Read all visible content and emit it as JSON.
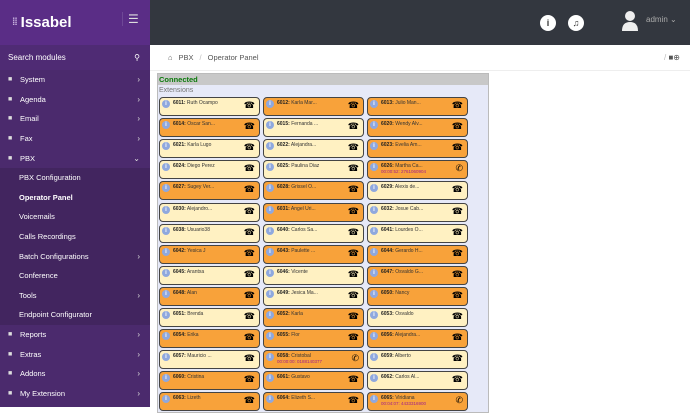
{
  "app": {
    "logo": "Issabel",
    "menu_icon": "hamburger-icon"
  },
  "sidebar": {
    "search_label": "Search modules",
    "items": [
      {
        "label": "System",
        "icon": "cog-icon",
        "chev": "›"
      },
      {
        "label": "Agenda",
        "icon": "book-icon",
        "chev": "›"
      },
      {
        "label": "Email",
        "icon": "envelope-icon",
        "chev": "›"
      },
      {
        "label": "Fax",
        "icon": "fax-icon",
        "chev": "›"
      },
      {
        "label": "PBX",
        "icon": "phone-icon",
        "chev": "⌄"
      },
      {
        "label": "PBX Configuration",
        "sub": true
      },
      {
        "label": "Operator Panel",
        "sub": true,
        "active": true
      },
      {
        "label": "Voicemails",
        "sub": true
      },
      {
        "label": "Calls Recordings",
        "sub": true
      },
      {
        "label": "Batch Configurations",
        "sub": true,
        "chev": "›"
      },
      {
        "label": "Conference",
        "sub": true
      },
      {
        "label": "Tools",
        "sub": true,
        "chev": "›"
      },
      {
        "label": "Endpoint Configurator",
        "sub": true
      },
      {
        "label": "Reports",
        "icon": "chart-icon",
        "chev": "›"
      },
      {
        "label": "Extras",
        "icon": "plus-icon",
        "chev": "›"
      },
      {
        "label": "Addons",
        "icon": "addons-icon",
        "chev": "›"
      },
      {
        "label": "My Extension",
        "icon": "user-icon",
        "chev": "›"
      }
    ]
  },
  "header": {
    "user": "admin ⌄"
  },
  "breadcrumb": {
    "items": [
      "PBX",
      "Operator Panel"
    ]
  },
  "panel": {
    "status": "Connected",
    "section": "Extensions",
    "colors": {
      "busy": "#f8a23a",
      "idle": "#fff1c2",
      "status": "#0b7a0b"
    },
    "extensions": [
      {
        "ext": "6011",
        "name": "Ruth Ocampo",
        "state": "idle"
      },
      {
        "ext": "6012",
        "name": "Karla Mar...",
        "state": "busy"
      },
      {
        "ext": "6013",
        "name": "Julio Man...",
        "state": "busy"
      },
      {
        "ext": "6014",
        "name": "Oscar San...",
        "state": "busy"
      },
      {
        "ext": "6015",
        "name": "Fernanda ...",
        "state": "idle"
      },
      {
        "ext": "6020",
        "name": "Wendy Alv...",
        "state": "busy"
      },
      {
        "ext": "6021",
        "name": "Karla Lugo",
        "state": "idle"
      },
      {
        "ext": "6022",
        "name": "Alejandra...",
        "state": "idle"
      },
      {
        "ext": "6023",
        "name": "Evelia Am...",
        "state": "busy"
      },
      {
        "ext": "6024",
        "name": "Diego Perez",
        "state": "idle"
      },
      {
        "ext": "6025",
        "name": "Paulina Diaz",
        "state": "idle"
      },
      {
        "ext": "6026",
        "name": "Martha Ca...",
        "state": "busy",
        "call": "00:00:52: 2761060904"
      },
      {
        "ext": "6027",
        "name": "Sugey Ver...",
        "state": "busy"
      },
      {
        "ext": "6028",
        "name": "Grissel O...",
        "state": "busy"
      },
      {
        "ext": "6029",
        "name": "Alexis de...",
        "state": "idle"
      },
      {
        "ext": "6030",
        "name": "Alejandro...",
        "state": "idle"
      },
      {
        "ext": "6031",
        "name": "Angel Uri...",
        "state": "busy"
      },
      {
        "ext": "6032",
        "name": "Josue Cab...",
        "state": "idle"
      },
      {
        "ext": "6038",
        "name": "Usuario38",
        "state": "idle"
      },
      {
        "ext": "6040",
        "name": "Carlos Sa...",
        "state": "idle"
      },
      {
        "ext": "6041",
        "name": "Lourdes O...",
        "state": "idle"
      },
      {
        "ext": "6042",
        "name": "Yesica J",
        "state": "busy"
      },
      {
        "ext": "6043",
        "name": "Paulette ...",
        "state": "busy"
      },
      {
        "ext": "6044",
        "name": "Gerardo H...",
        "state": "busy"
      },
      {
        "ext": "6045",
        "name": "Arantxa",
        "state": "idle"
      },
      {
        "ext": "6046",
        "name": "Vicente",
        "state": "idle"
      },
      {
        "ext": "6047",
        "name": "Osvaldo G...",
        "state": "busy"
      },
      {
        "ext": "6048",
        "name": "Alan",
        "state": "busy"
      },
      {
        "ext": "6049",
        "name": "Jesica Ma...",
        "state": "idle"
      },
      {
        "ext": "6050",
        "name": "Nancy",
        "state": "busy"
      },
      {
        "ext": "6051",
        "name": "Brenda",
        "state": "idle"
      },
      {
        "ext": "6052",
        "name": "Karla",
        "state": "busy"
      },
      {
        "ext": "6053",
        "name": "Osvaldo",
        "state": "idle"
      },
      {
        "ext": "6054",
        "name": "Erika",
        "state": "busy"
      },
      {
        "ext": "6055",
        "name": "Flor",
        "state": "busy"
      },
      {
        "ext": "6056",
        "name": "Alejandra...",
        "state": "busy"
      },
      {
        "ext": "6057",
        "name": "Mauricio ...",
        "state": "idle"
      },
      {
        "ext": "6058",
        "name": "Cristobal",
        "state": "busy",
        "call": "00:00:00: 0188140377"
      },
      {
        "ext": "6059",
        "name": "Alberto",
        "state": "idle"
      },
      {
        "ext": "6060",
        "name": "Cristina",
        "state": "busy"
      },
      {
        "ext": "6061",
        "name": "Gustavo",
        "state": "busy"
      },
      {
        "ext": "6062",
        "name": "Carlos Al...",
        "state": "idle"
      },
      {
        "ext": "6063",
        "name": "Lizeth",
        "state": "busy"
      },
      {
        "ext": "6064",
        "name": "Elizeth S...",
        "state": "busy"
      },
      {
        "ext": "6065",
        "name": "Viridiana",
        "state": "busy",
        "call": "00:04:07: 4433316900"
      }
    ]
  }
}
